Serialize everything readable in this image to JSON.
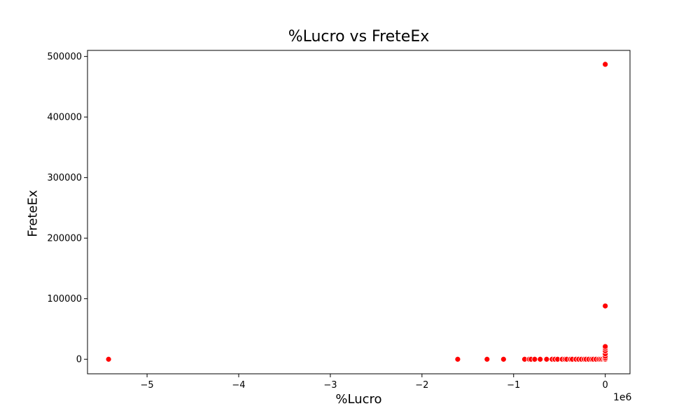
{
  "chart_data": {
    "type": "scatter",
    "title": "%Lucro vs FreteEx",
    "xlabel": "%Lucro",
    "ylabel": "FreteEx",
    "x_offset_label": "1e6",
    "x_scale": 1000000,
    "xlim": [
      -5.65,
      0.27
    ],
    "ylim": [
      -24000,
      510000
    ],
    "x_ticks": [
      -5,
      -4,
      -3,
      -2,
      -1,
      0
    ],
    "x_tick_labels": [
      "−5",
      "−4",
      "−3",
      "−2",
      "−1",
      "0"
    ],
    "y_ticks": [
      0,
      100000,
      200000,
      300000,
      400000,
      500000
    ],
    "y_tick_labels": [
      "0",
      "100000",
      "200000",
      "300000",
      "400000",
      "500000"
    ],
    "grid": false,
    "marker_color": "#ff0000",
    "points": [
      {
        "x": -5.42,
        "y": 0
      },
      {
        "x": -1.61,
        "y": 0
      },
      {
        "x": -1.29,
        "y": 0
      },
      {
        "x": -1.11,
        "y": 0
      },
      {
        "x": -0.88,
        "y": 0
      },
      {
        "x": -0.83,
        "y": 0
      },
      {
        "x": -0.81,
        "y": 0
      },
      {
        "x": -0.77,
        "y": 0
      },
      {
        "x": -0.71,
        "y": 0
      },
      {
        "x": -0.64,
        "y": 0
      },
      {
        "x": -0.58,
        "y": 0
      },
      {
        "x": -0.55,
        "y": 0
      },
      {
        "x": -0.52,
        "y": 0
      },
      {
        "x": -0.47,
        "y": 0
      },
      {
        "x": -0.44,
        "y": 0
      },
      {
        "x": -0.42,
        "y": 0
      },
      {
        "x": -0.38,
        "y": 0
      },
      {
        "x": -0.36,
        "y": 0
      },
      {
        "x": -0.32,
        "y": 0
      },
      {
        "x": -0.29,
        "y": 0
      },
      {
        "x": -0.26,
        "y": 0
      },
      {
        "x": -0.23,
        "y": 0
      },
      {
        "x": -0.21,
        "y": 0
      },
      {
        "x": -0.18,
        "y": 0
      },
      {
        "x": -0.15,
        "y": 0
      },
      {
        "x": -0.13,
        "y": 0
      },
      {
        "x": -0.1,
        "y": 0
      },
      {
        "x": -0.07,
        "y": 0
      },
      {
        "x": -0.05,
        "y": 0
      },
      {
        "x": -0.03,
        "y": 0
      },
      {
        "x": -0.01,
        "y": 0
      },
      {
        "x": 0,
        "y": 0
      },
      {
        "x": 0,
        "y": 2000
      },
      {
        "x": 0,
        "y": 5000
      },
      {
        "x": 0,
        "y": 9000
      },
      {
        "x": 0,
        "y": 14000
      },
      {
        "x": 0,
        "y": 18000
      },
      {
        "x": 0,
        "y": 21000
      },
      {
        "x": 0,
        "y": 88000
      },
      {
        "x": 0,
        "y": 487000
      }
    ]
  }
}
